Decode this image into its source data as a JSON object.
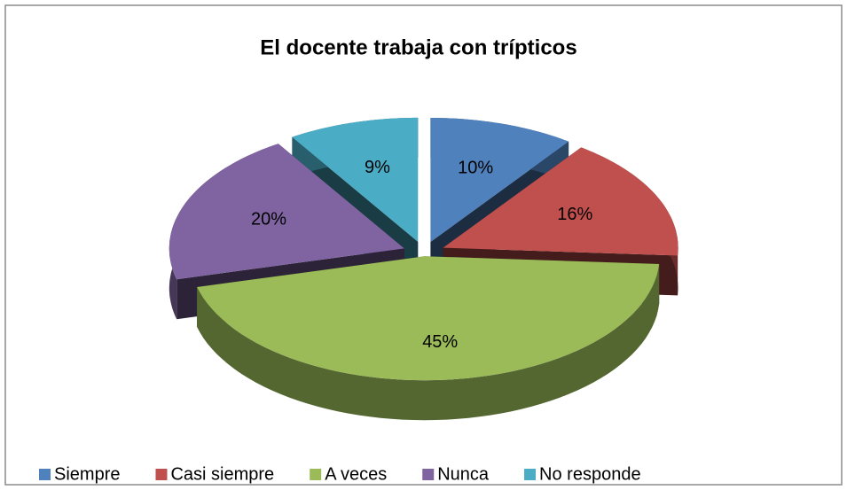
{
  "chart_data": {
    "type": "pie",
    "title": "El docente trabaja con trípticos",
    "categories": [
      "Siempre",
      "Casi siempre",
      "A veces",
      "Nunca",
      "No responde"
    ],
    "values": [
      10,
      16,
      45,
      20,
      9
    ],
    "value_labels": [
      "10%",
      "16%",
      "45%",
      "20%",
      "9%"
    ],
    "colors": [
      "#4f81bd",
      "#c0504d",
      "#9bbb59",
      "#8064a2",
      "#4bacc6"
    ],
    "legend": "bottom"
  }
}
